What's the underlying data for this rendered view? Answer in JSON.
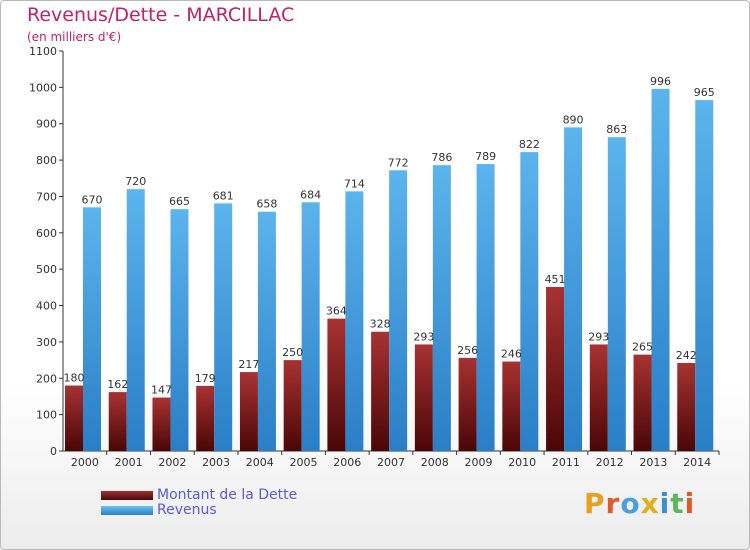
{
  "header": {
    "title": "Revenus/Dette - MARCILLAC",
    "subtitle": "(en milliers d'€)"
  },
  "chart_data": {
    "type": "bar",
    "categories": [
      "2000",
      "2001",
      "2002",
      "2003",
      "2004",
      "2005",
      "2006",
      "2007",
      "2008",
      "2009",
      "2010",
      "2011",
      "2012",
      "2013",
      "2014"
    ],
    "series": [
      {
        "name": "Montant de la Dette",
        "color": "#7a1a1a",
        "values": [
          180,
          162,
          147,
          179,
          217,
          250,
          364,
          328,
          293,
          256,
          246,
          451,
          293,
          265,
          242
        ]
      },
      {
        "name": "Revenus",
        "color": "#3a9ee0",
        "values": [
          670,
          720,
          665,
          681,
          658,
          684,
          714,
          772,
          786,
          789,
          822,
          890,
          863,
          996,
          965
        ]
      }
    ],
    "yticks": [
      0,
      100,
      200,
      300,
      400,
      500,
      600,
      700,
      800,
      900,
      1000,
      1100
    ],
    "ylim": [
      0,
      1100
    ],
    "grid": false,
    "legend": "bottom-left"
  },
  "legend": {
    "debt_label": "Montant de la Dette",
    "revenue_label": "Revenus"
  },
  "logo": {
    "letters": [
      "P",
      "r",
      "o",
      "x",
      "i",
      "t",
      "i"
    ],
    "colors": [
      "#e8a020",
      "#e05a28",
      "#4aa0d8",
      "#e0b020",
      "#3a8fd0",
      "#5cb85c",
      "#e05a28"
    ]
  }
}
